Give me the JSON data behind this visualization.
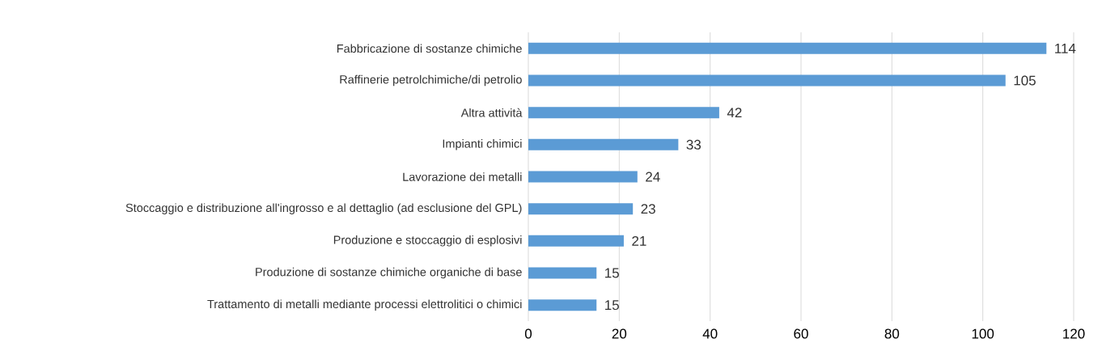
{
  "chart_data": {
    "type": "bar",
    "orientation": "horizontal",
    "categories": [
      "Fabbricazione di sostanze chimiche",
      "Raffinerie petrolchimiche/di petrolio",
      "Altra attività",
      "Impianti chimici",
      "Lavorazione dei metalli",
      "Stoccaggio e distribuzione all'ingrosso e al dettaglio (ad esclusione del GPL)",
      "Produzione e stoccaggio di esplosivi",
      "Produzione di sostanze chimiche organiche di base",
      "Trattamento di metalli mediante processi elettrolitici o chimici"
    ],
    "values": [
      114,
      105,
      42,
      33,
      24,
      23,
      21,
      15,
      15
    ],
    "color": "#5b9bd5",
    "xlim": [
      0,
      120
    ],
    "xticks": [
      0,
      20,
      40,
      60,
      80,
      100,
      120
    ],
    "grid": "x",
    "data_labels": true
  }
}
